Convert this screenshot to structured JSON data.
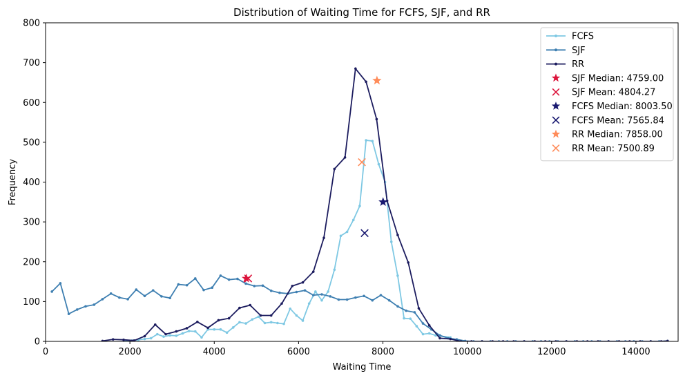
{
  "chart_data": {
    "type": "line",
    "title": "Distribution of Waiting Time for FCFS, SJF, and RR",
    "xlabel": "Waiting Time",
    "ylabel": "Frequency",
    "xlim": [
      0,
      15000
    ],
    "ylim": [
      0,
      800
    ],
    "xticks": [
      0,
      2000,
      4000,
      6000,
      8000,
      10000,
      12000,
      14000
    ],
    "yticks": [
      0,
      100,
      200,
      300,
      400,
      500,
      600,
      700,
      800
    ],
    "grid": false,
    "legend_position": "top-right",
    "series": [
      {
        "name": "FCFS",
        "color": "#7ec8e3",
        "x": [
          1900,
          2100,
          2300,
          2450,
          2600,
          2750,
          2900,
          3050,
          3200,
          3350,
          3500,
          3650,
          3800,
          3950,
          4100,
          4250,
          4400,
          4550,
          4700,
          4850,
          5000,
          5150,
          5300,
          5450,
          5600,
          5750,
          5900,
          6050,
          6200,
          6350,
          6500,
          6650,
          6800,
          6950,
          7100,
          7250,
          7400,
          7550,
          7700,
          7850,
          8000,
          8150,
          8300,
          8450,
          8600,
          8750,
          8900,
          9050,
          9200,
          9350,
          9500
        ],
        "y": [
          1,
          2,
          4,
          6,
          8,
          18,
          12,
          15,
          14,
          20,
          26,
          25,
          10,
          30,
          30,
          30,
          22,
          35,
          48,
          45,
          55,
          62,
          46,
          48,
          46,
          44,
          82,
          65,
          52,
          95,
          125,
          103,
          125,
          180,
          265,
          275,
          305,
          340,
          505,
          503,
          445,
          400,
          250,
          165,
          58,
          57,
          38,
          18,
          20,
          15,
          10
        ],
        "x_plot": [
          1900,
          2050,
          2200,
          2350,
          2500,
          2650,
          2800,
          2950,
          3100,
          3250,
          3400,
          3550,
          3700,
          3850,
          4000,
          4150,
          4300,
          4450,
          4600,
          4750,
          4900,
          5050,
          5200,
          5350,
          5500,
          5650,
          5800,
          5950,
          6100,
          6250,
          6400,
          6550,
          6700,
          6850,
          7000,
          7150,
          7300,
          7450,
          7600,
          7750,
          7900,
          8050,
          8200,
          8350,
          8500,
          8650,
          8800,
          8950,
          9100,
          9250,
          9600
        ]
      },
      {
        "name": "SJF",
        "color": "#3e7fb1",
        "x": [
          150,
          350,
          550,
          750,
          950,
          1150,
          1350,
          1550,
          1750,
          1950,
          2150,
          2350,
          2550,
          2750,
          2950,
          3150,
          3350,
          3550,
          3750,
          3950,
          4150,
          4350,
          4550,
          4750,
          4950,
          5150,
          5350,
          5550,
          5750,
          5950,
          6150,
          6350,
          6550,
          6750,
          6950,
          7150,
          7350,
          7550,
          7750,
          7950,
          8150,
          8350,
          8550,
          8750,
          8950,
          9150,
          9350,
          9550,
          9750,
          9950,
          10150,
          10350,
          10550,
          10750,
          10950,
          11150,
          11350,
          11550,
          11750,
          11950,
          12150,
          12350,
          12550,
          12750,
          12950,
          13150,
          13350,
          13550,
          13750,
          13950,
          14150,
          14350,
          14550,
          14750
        ],
        "y": [
          125,
          146,
          69,
          80,
          88,
          92,
          106,
          120,
          110,
          106,
          130,
          114,
          128,
          113,
          109,
          143,
          141,
          158,
          129,
          135,
          165,
          155,
          157,
          145,
          139,
          140,
          127,
          122,
          120,
          124,
          128,
          116,
          118,
          113,
          105,
          105,
          110,
          114,
          103,
          116,
          103,
          88,
          77,
          73,
          45,
          30,
          15,
          8,
          5,
          1,
          0,
          0,
          0,
          0,
          0,
          0,
          0,
          0,
          0,
          0,
          0,
          0,
          0,
          0,
          0,
          0,
          0,
          0,
          0,
          0,
          0,
          0,
          0,
          1
        ]
      },
      {
        "name": "RR",
        "color": "#1b1b5e",
        "x": [
          1350,
          1600,
          1850,
          2100,
          2350,
          2600,
          2850,
          3100,
          3350,
          3600,
          3850,
          4100,
          4350,
          4600,
          4850,
          5100,
          5350,
          5600,
          5850,
          6100,
          6350,
          6600,
          6850,
          7100,
          7350,
          7600,
          7850,
          8100,
          8350,
          8600,
          8850,
          9100,
          9350,
          9600,
          9850,
          10100,
          10350,
          10600,
          10850,
          11100,
          11350,
          11600,
          11850,
          12100,
          12350,
          12600,
          12850,
          13100,
          13350,
          13600,
          13850,
          14100,
          14350,
          14600,
          14750
        ],
        "y": [
          1,
          5,
          4,
          2,
          13,
          42,
          18,
          25,
          33,
          49,
          34,
          53,
          58,
          84,
          91,
          65,
          65,
          95,
          139,
          148,
          175,
          260,
          433,
          462,
          685,
          652,
          558,
          353,
          267,
          198,
          83,
          40,
          8,
          6,
          0,
          0,
          0,
          0,
          0,
          0,
          0,
          0,
          0,
          0,
          0,
          0,
          0,
          0,
          0,
          0,
          0,
          0,
          0,
          0,
          1
        ]
      }
    ],
    "markers": [
      {
        "label": "SJF Median: 4759.00",
        "symbol": "star",
        "color": "#dc143c",
        "x": 4759,
        "y": 158
      },
      {
        "label": "SJF Mean: 4804.27",
        "symbol": "x",
        "color": "#dc143c",
        "x": 4804,
        "y": 158
      },
      {
        "label": "FCFS Median: 8003.50",
        "symbol": "star",
        "color": "#191970",
        "x": 8003,
        "y": 350
      },
      {
        "label": "FCFS Mean: 7565.84",
        "symbol": "x",
        "color": "#191970",
        "x": 7566,
        "y": 272
      },
      {
        "label": "RR Median: 7858.00",
        "symbol": "star",
        "color": "#ff8c5a",
        "x": 7858,
        "y": 655
      },
      {
        "label": "RR Mean: 7500.89",
        "symbol": "x",
        "color": "#ff8c5a",
        "x": 7501,
        "y": 450
      }
    ]
  }
}
